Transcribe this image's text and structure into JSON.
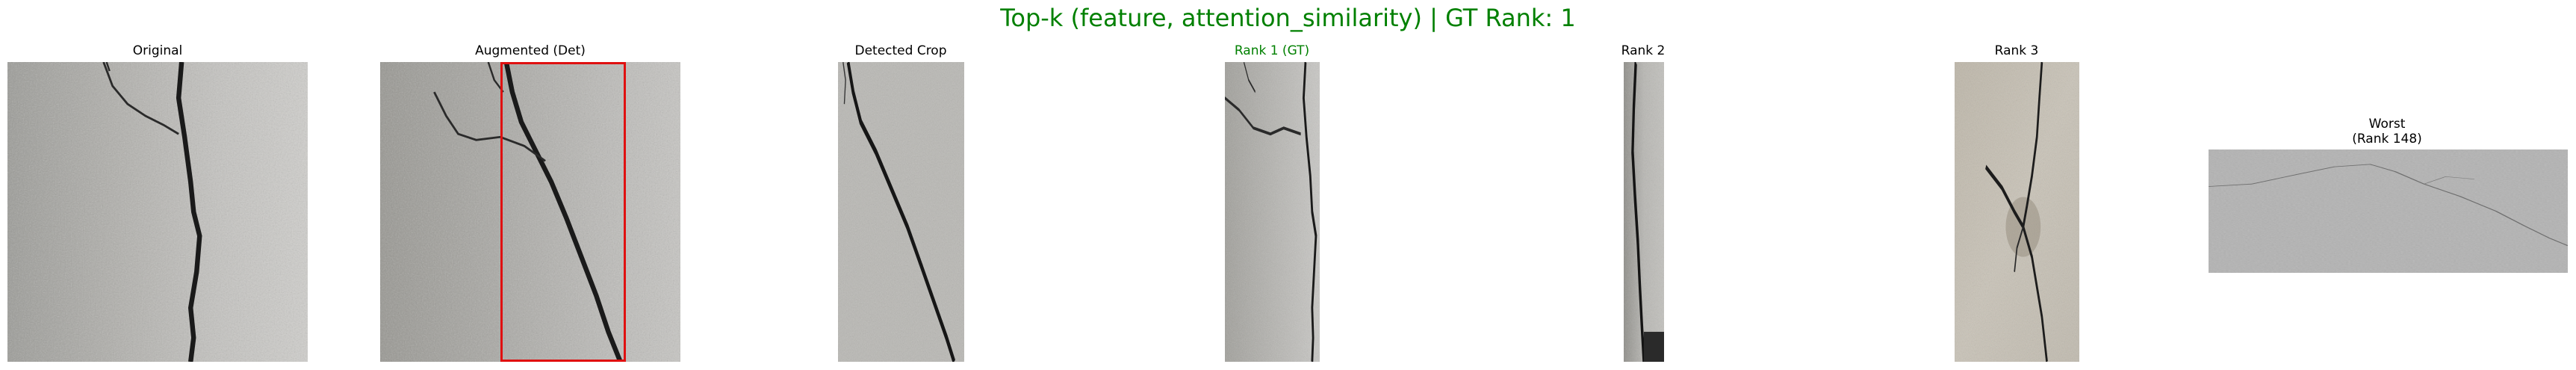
{
  "figure": {
    "title": "Top-k (feature, attention_similarity) | GT Rank: 1",
    "title_color": "#008000",
    "panels": [
      {
        "title": "Original"
      },
      {
        "title": "Augmented (Det)"
      },
      {
        "title": "Detected Crop"
      },
      {
        "title": "Rank 1 (GT)",
        "color": "#008000"
      },
      {
        "title": "Rank 2"
      },
      {
        "title": "Rank 3"
      },
      {
        "title_line1": "Worst",
        "title_line2": "(Rank 148)"
      }
    ],
    "detection_box_color": "#e01010"
  }
}
